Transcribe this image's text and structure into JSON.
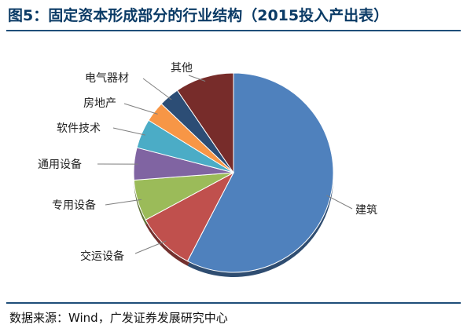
{
  "title": "图5：固定资本形成部分的行业结构（2015投入产出表）",
  "source": "数据来源：Wind，广发证券发展研究中心",
  "chart_data": {
    "type": "pie",
    "title": "图5：固定资本形成部分的行业结构（2015投入产出表）",
    "slices": [
      {
        "label": "建筑",
        "value": 60.5,
        "color": "#4f81bd"
      },
      {
        "label": "交运设备",
        "value": 10.0,
        "color": "#c0504d"
      },
      {
        "label": "专用设备",
        "value": 7.0,
        "color": "#9bbb59"
      },
      {
        "label": "通用设备",
        "value": 5.5,
        "color": "#8064a2"
      },
      {
        "label": "软件技术",
        "value": 5.0,
        "color": "#4bacc6"
      },
      {
        "label": "房地产",
        "value": 3.5,
        "color": "#f79646"
      },
      {
        "label": "电气器材",
        "value": 3.5,
        "color": "#2c4d75"
      },
      {
        "label": "其他",
        "value": 10.0,
        "color": "#772c2a"
      }
    ],
    "legend": "none",
    "labels": "outside with leader lines"
  }
}
